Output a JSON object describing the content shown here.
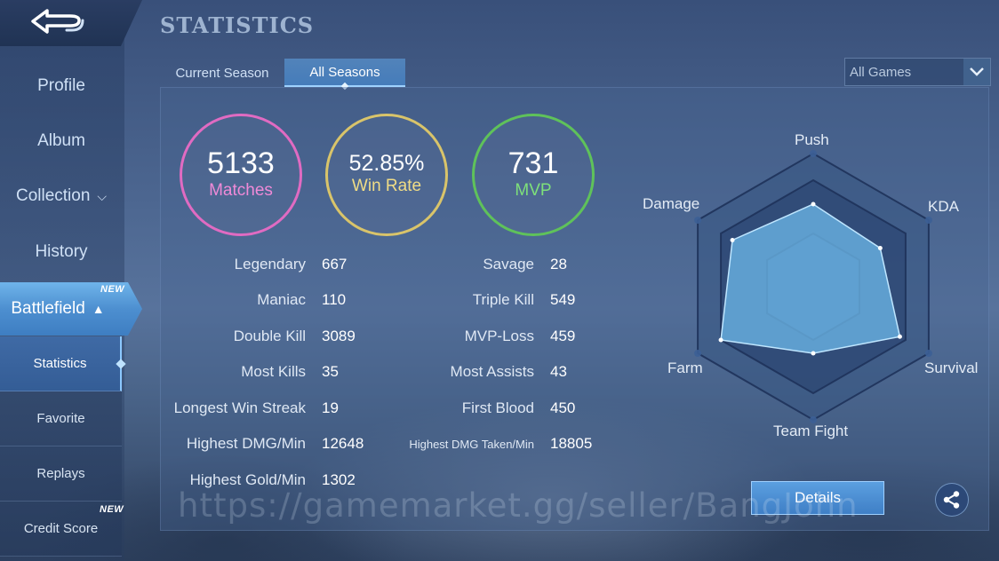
{
  "header": {
    "title": "STATISTICS"
  },
  "sidebar": {
    "items": [
      {
        "label": "Profile"
      },
      {
        "label": "Album"
      },
      {
        "label": "Collection"
      },
      {
        "label": "History"
      },
      {
        "label": "Battlefield",
        "badge": "NEW"
      }
    ],
    "sub_items": [
      {
        "label": "Statistics"
      },
      {
        "label": "Favorite"
      },
      {
        "label": "Replays"
      },
      {
        "label": "Credit Score",
        "badge": "NEW"
      }
    ]
  },
  "tabs": [
    {
      "label": "Current Season"
    },
    {
      "label": "All Seasons"
    }
  ],
  "filter": {
    "selected": "All Games"
  },
  "summary": {
    "matches": {
      "value": "5133",
      "label": "Matches"
    },
    "win_rate": {
      "value": "52.85%",
      "label": "Win Rate"
    },
    "mvp": {
      "value": "731",
      "label": "MVP"
    }
  },
  "stats_left": [
    {
      "label": "Legendary",
      "value": "667"
    },
    {
      "label": "Maniac",
      "value": "110"
    },
    {
      "label": "Double Kill",
      "value": "3089"
    },
    {
      "label": "Most Kills",
      "value": "35"
    },
    {
      "label": "Longest Win Streak",
      "value": "19"
    },
    {
      "label": "Highest DMG/Min",
      "value": "12648"
    },
    {
      "label": "Highest Gold/Min",
      "value": "1302"
    }
  ],
  "stats_right": [
    {
      "label": "Savage",
      "value": "28"
    },
    {
      "label": "Triple Kill",
      "value": "549"
    },
    {
      "label": "MVP-Loss",
      "value": "459"
    },
    {
      "label": "Most Assists",
      "value": "43"
    },
    {
      "label": "First Blood",
      "value": "450"
    },
    {
      "label": "Highest DMG Taken/Min",
      "value": "18805"
    }
  ],
  "radar": {
    "axes": [
      "Push",
      "KDA",
      "Survival",
      "Team Fight",
      "Farm",
      "Damage"
    ],
    "values": [
      0.62,
      0.58,
      0.75,
      0.5,
      0.8,
      0.7
    ]
  },
  "actions": {
    "details_label": "Details"
  },
  "watermark": "https://gamemarket.gg/seller/BangJohn",
  "colors": {
    "matches": "#e06bc2",
    "win_rate": "#d9c46a",
    "mvp": "#5fc25a",
    "accent": "#5b9fe0"
  }
}
